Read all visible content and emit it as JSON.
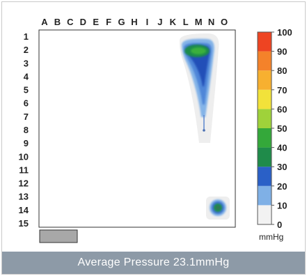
{
  "caption": "Average Pressure 23.1mmHg",
  "chart_data": {
    "type": "heatmap",
    "title": "",
    "columns": [
      "A",
      "B",
      "C",
      "D",
      "E",
      "F",
      "G",
      "H",
      "I",
      "J",
      "K",
      "L",
      "M",
      "N",
      "O"
    ],
    "rows": [
      "1",
      "2",
      "3",
      "4",
      "5",
      "6",
      "7",
      "8",
      "9",
      "10",
      "11",
      "12",
      "13",
      "14",
      "15"
    ],
    "colorbar": {
      "ticks": [
        0,
        10,
        20,
        30,
        40,
        50,
        60,
        70,
        80,
        90,
        100
      ],
      "unit": "mmHg",
      "range": [
        0,
        100
      ],
      "colors": [
        "#f2f2f2",
        "#7fb0e6",
        "#2a60c7",
        "#1f8b4a",
        "#34a83a",
        "#9fd23a",
        "#f2e23a",
        "#f7b030",
        "#f4822a",
        "#ee4422"
      ]
    },
    "regions": [
      {
        "name": "upper-right-pressure-region",
        "columns": [
          "K",
          "L",
          "M",
          "N"
        ],
        "rows": [
          "1",
          "2",
          "3",
          "4",
          "5",
          "6",
          "7",
          "8"
        ],
        "peak_cell": {
          "column": "M",
          "row": "2"
        },
        "peak_pressure_mmHg": 45
      },
      {
        "name": "lower-right-pressure-spot",
        "columns": [
          "N"
        ],
        "rows": [
          "14"
        ],
        "peak_cell": {
          "column": "N",
          "row": "14"
        },
        "peak_pressure_mmHg": 40
      }
    ]
  }
}
